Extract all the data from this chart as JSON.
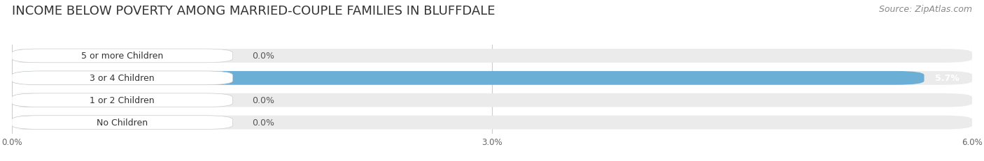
{
  "title": "INCOME BELOW POVERTY AMONG MARRIED-COUPLE FAMILIES IN BLUFFDALE",
  "source": "Source: ZipAtlas.com",
  "categories": [
    "No Children",
    "1 or 2 Children",
    "3 or 4 Children",
    "5 or more Children"
  ],
  "values": [
    0.0,
    0.0,
    5.7,
    0.0
  ],
  "bar_colors": [
    "#f5c48a",
    "#f0a0a0",
    "#6baed6",
    "#c9b8e8"
  ],
  "label_colors": [
    "#444444",
    "#444444",
    "#444444",
    "#444444"
  ],
  "value_label_colors": [
    "#555555",
    "#555555",
    "#ffffff",
    "#555555"
  ],
  "xlim": [
    0,
    6.0
  ],
  "xticks": [
    0.0,
    3.0,
    6.0
  ],
  "xtick_labels": [
    "0.0%",
    "3.0%",
    "6.0%"
  ],
  "background_color": "#ffffff",
  "bar_background_color": "#ebebeb",
  "title_fontsize": 13,
  "source_fontsize": 9,
  "bar_height": 0.62,
  "label_fontsize": 9,
  "value_fontsize": 9
}
